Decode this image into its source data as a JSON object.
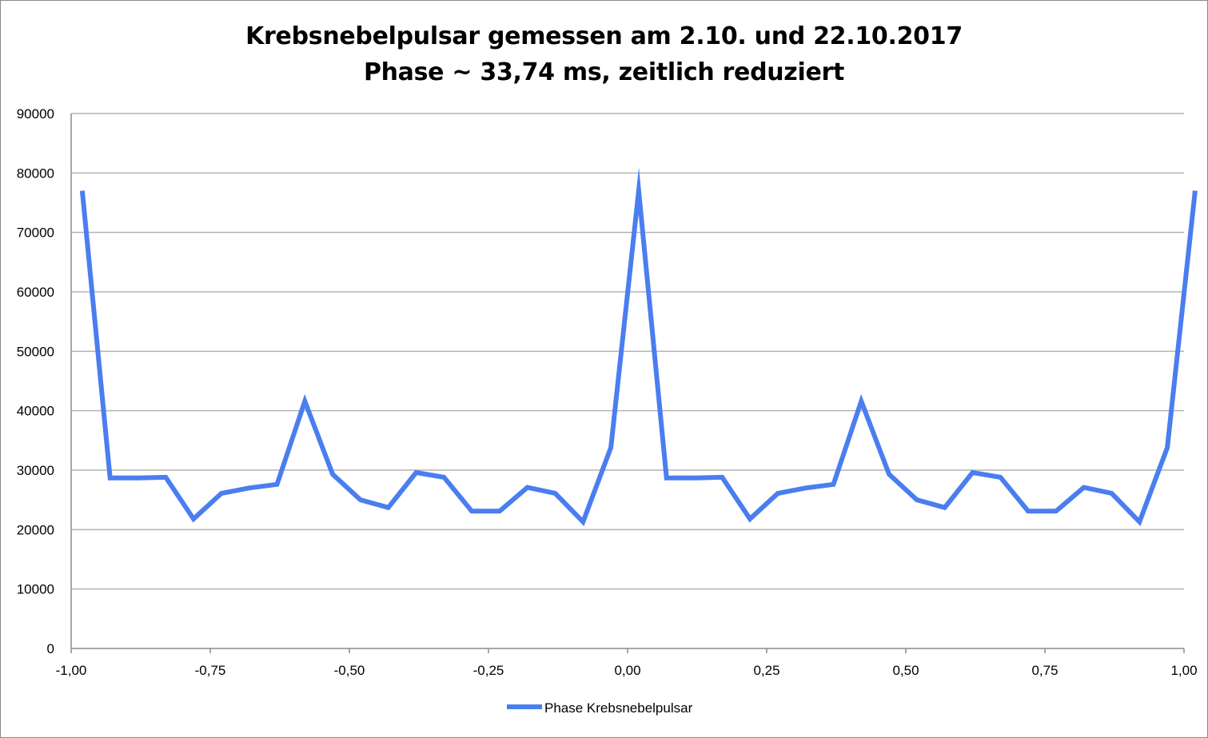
{
  "chart_data": {
    "type": "line",
    "title": "Krebsnebelpulsar gemessen am 2.10. und 22.10.2017",
    "subtitle": "Phase ~ 33,74 ms, zeitlich reduziert",
    "xlabel": "",
    "ylabel": "",
    "xlim": [
      -1.0,
      1.0
    ],
    "ylim": [
      0,
      90000
    ],
    "x_ticks": [
      -1.0,
      -0.75,
      -0.5,
      -0.25,
      0.0,
      0.25,
      0.5,
      0.75,
      1.0
    ],
    "x_tick_labels": [
      "-1,00",
      "-0,75",
      "-0,50",
      "-0,25",
      "0,00",
      "0,25",
      "0,50",
      "0,75",
      "1,00"
    ],
    "y_ticks": [
      0,
      10000,
      20000,
      30000,
      40000,
      50000,
      60000,
      70000,
      80000,
      90000
    ],
    "y_tick_labels": [
      "0",
      "10000",
      "20000",
      "30000",
      "40000",
      "50000",
      "60000",
      "70000",
      "80000",
      "90000"
    ],
    "grid": "horizontal",
    "legend_position": "bottom",
    "series": [
      {
        "name": "Phase Krebsnebelpulsar",
        "color": "#4a7ef0",
        "x": [
          -0.98,
          -0.93,
          -0.88,
          -0.83,
          -0.78,
          -0.73,
          -0.68,
          -0.63,
          -0.58,
          -0.53,
          -0.48,
          -0.43,
          -0.38,
          -0.33,
          -0.28,
          -0.23,
          -0.18,
          -0.13,
          -0.08,
          -0.03,
          0.02,
          0.07,
          0.12,
          0.17,
          0.22,
          0.27,
          0.32,
          0.37,
          0.42,
          0.47,
          0.52,
          0.57,
          0.62,
          0.67,
          0.72,
          0.77,
          0.82,
          0.87,
          0.92,
          0.97,
          1.02
        ],
        "values": [
          77000,
          28700,
          28700,
          28800,
          21800,
          26100,
          27000,
          27600,
          41600,
          29300,
          25000,
          23700,
          29600,
          28800,
          23100,
          23100,
          27100,
          26100,
          21300,
          33800,
          77000,
          28700,
          28700,
          28800,
          21800,
          26100,
          27000,
          27600,
          41600,
          29300,
          25000,
          23700,
          29600,
          28800,
          23100,
          23100,
          27100,
          26100,
          21300,
          33800,
          77000
        ]
      }
    ]
  }
}
